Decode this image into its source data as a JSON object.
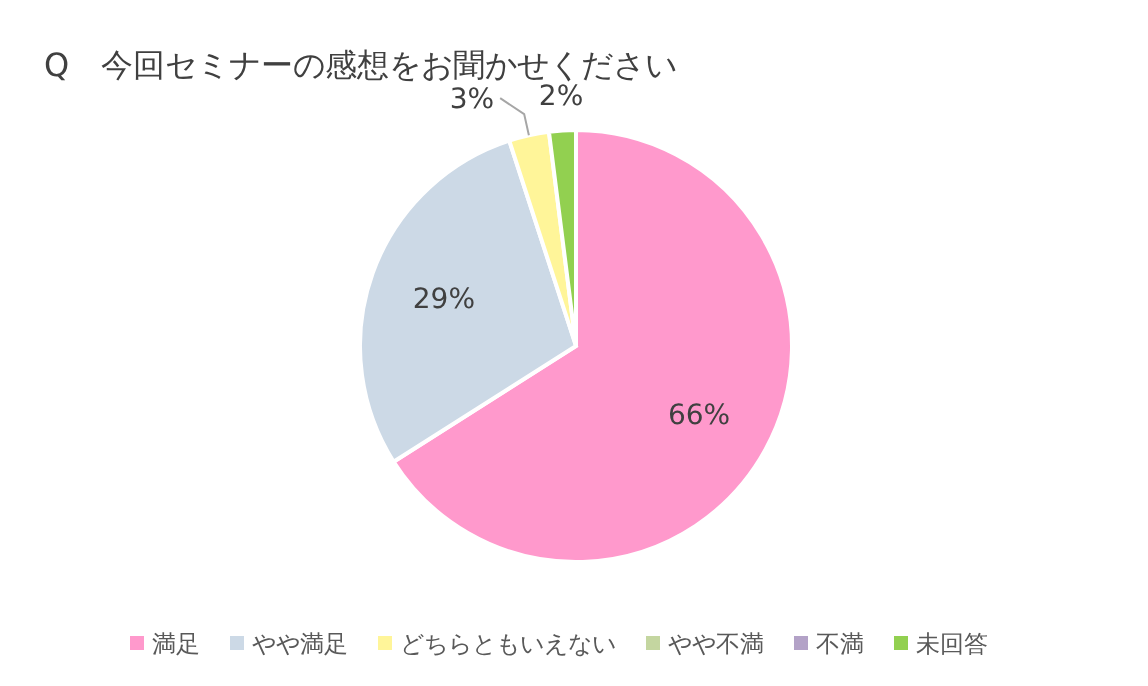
{
  "chart_data": {
    "type": "pie",
    "title": "Q　今回セミナーの感想をお聞かせください",
    "categories": [
      "満足",
      "やや満足",
      "どちらともいえない",
      "やや不満",
      "不満",
      "未回答"
    ],
    "values": [
      66,
      29,
      3,
      0,
      0,
      2
    ],
    "colors": [
      "#ff99cc",
      "#ccd9e6",
      "#fff599",
      "#c4d6a0",
      "#b3a2c7",
      "#92d050"
    ],
    "value_labels": [
      "66%",
      "29%",
      "3%",
      null,
      null,
      "2%"
    ],
    "legend": "bottom"
  }
}
